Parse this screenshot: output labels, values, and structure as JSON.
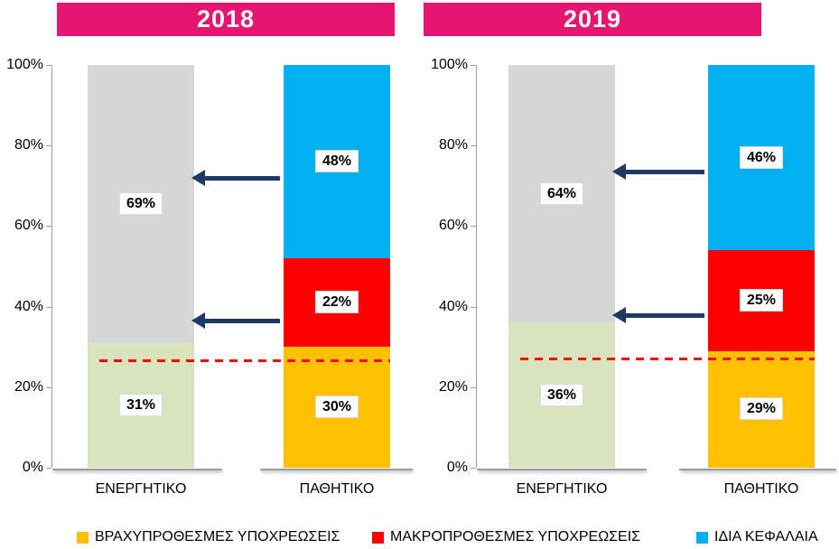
{
  "chart_data": [
    {
      "type": "bar",
      "stacked": true,
      "title": "2018",
      "categories": [
        "ΕΝΕΡΓΗΤΙΚΟ",
        "ΠΑΘΗΤΙΚΟ"
      ],
      "y_ticks": [
        "0%",
        "20%",
        "40%",
        "60%",
        "80%",
        "100%"
      ],
      "ylim": [
        0,
        100
      ],
      "bars": [
        {
          "category": "ΕΝΕΡΓΗΤΙΚΟ",
          "segments": [
            {
              "label": "31%",
              "value": 31,
              "color_key": "assets_lower"
            },
            {
              "label": "69%",
              "value": 69,
              "color_key": "assets_upper"
            }
          ]
        },
        {
          "category": "ΠΑΘΗΤΙΚΟ",
          "segments": [
            {
              "label": "30%",
              "value": 30,
              "color_key": "short_term"
            },
            {
              "label": "22%",
              "value": 22,
              "color_key": "long_term"
            },
            {
              "label": "48%",
              "value": 48,
              "color_key": "equity"
            }
          ]
        }
      ],
      "annotations": {
        "arrows_pct": [
          72,
          36.5
        ],
        "dashed_line_pct": 26.5
      }
    },
    {
      "type": "bar",
      "stacked": true,
      "title": "2019",
      "categories": [
        "ΕΝΕΡΓΗΤΙΚΟ",
        "ΠΑΘΗΤΙΚΟ"
      ],
      "y_ticks": [
        "0%",
        "20%",
        "40%",
        "60%",
        "80%",
        "100%"
      ],
      "ylim": [
        0,
        100
      ],
      "bars": [
        {
          "category": "ΕΝΕΡΓΗΤΙΚΟ",
          "segments": [
            {
              "label": "36%",
              "value": 36,
              "color_key": "assets_lower"
            },
            {
              "label": "64%",
              "value": 64,
              "color_key": "assets_upper"
            }
          ]
        },
        {
          "category": "ΠΑΘΗΤΙΚΟ",
          "segments": [
            {
              "label": "29%",
              "value": 29,
              "color_key": "short_term"
            },
            {
              "label": "25%",
              "value": 25,
              "color_key": "long_term"
            },
            {
              "label": "46%",
              "value": 46,
              "color_key": "equity"
            }
          ]
        }
      ],
      "annotations": {
        "arrows_pct": [
          73.5,
          38
        ],
        "dashed_line_pct": 27
      }
    }
  ],
  "legend": {
    "items": [
      {
        "label": "ΒΡΑΧΥΠΡΟΘΕΣΜΕΣ ΥΠΟΧΡΕΩΣΕΙΣ",
        "color": "#FFC000"
      },
      {
        "label": "ΜΑΚΡΟΠΡΟΘΕΣΜΕΣ ΥΠΟΧΡΕΩΣΕΙΣ",
        "color": "#FF0000"
      },
      {
        "label": "ΙΔΙΑ ΚΕΦΑΛΑΙΑ",
        "color": "#00B0F0"
      }
    ]
  },
  "colors": {
    "header_bg": "#E6156F",
    "header_text": "#FFFFFF",
    "assets_lower": "#D7E4BC",
    "assets_upper": "#D6D6D6",
    "short_term": "#FFC000",
    "long_term": "#FF0000",
    "equity": "#00B0F0",
    "arrow": "#1F3864",
    "dashed": "#FF0000"
  }
}
